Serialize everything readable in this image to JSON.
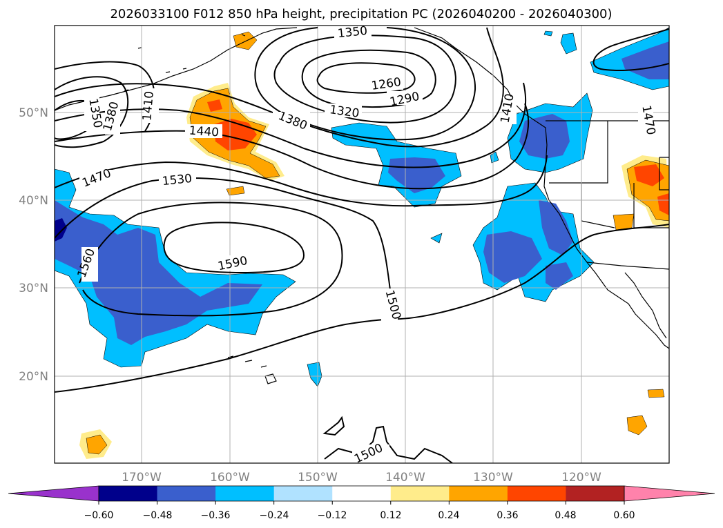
{
  "title": "2026033100 F012 850 hPa height, precipitation PC (2026040200 - 2026040300)",
  "axes": {
    "lat_ticks": [
      "50°N",
      "40°N",
      "30°N",
      "20°N"
    ],
    "lon_ticks": [
      "170°W",
      "160°W",
      "150°W",
      "140°W",
      "130°W",
      "120°W"
    ]
  },
  "contour_labels": [
    "1260",
    "1290",
    "1320",
    "1350",
    "1350",
    "1380",
    "1380",
    "1410",
    "1410",
    "1440",
    "1470",
    "1470",
    "1530",
    "1560",
    "1590",
    "1500",
    "1500"
  ],
  "colorbar": {
    "ticks": [
      "−0.60",
      "−0.48",
      "−0.36",
      "−0.24",
      "−0.12",
      "0.12",
      "0.24",
      "0.36",
      "0.48",
      "0.60"
    ],
    "levels": [
      -0.6,
      -0.48,
      -0.36,
      -0.24,
      -0.12,
      0.12,
      0.24,
      0.36,
      0.48,
      0.6
    ],
    "colors": [
      "#9932cc",
      "#00008b",
      "#3a5fcd",
      "#00bfff",
      "#b0e2ff",
      "#ffffff",
      "#ffec8b",
      "#ffa500",
      "#ff4500",
      "#b22222",
      "#ff82ab"
    ],
    "extend": "both"
  },
  "colors": {
    "strong_negative": "#3a5fcd",
    "negative": "#00bfff",
    "weak_negative": "#b0e2ff",
    "weak_positive": "#ffec8b",
    "positive": "#ffa500",
    "strong_positive": "#ff4500",
    "very_negative": "#00008b"
  }
}
